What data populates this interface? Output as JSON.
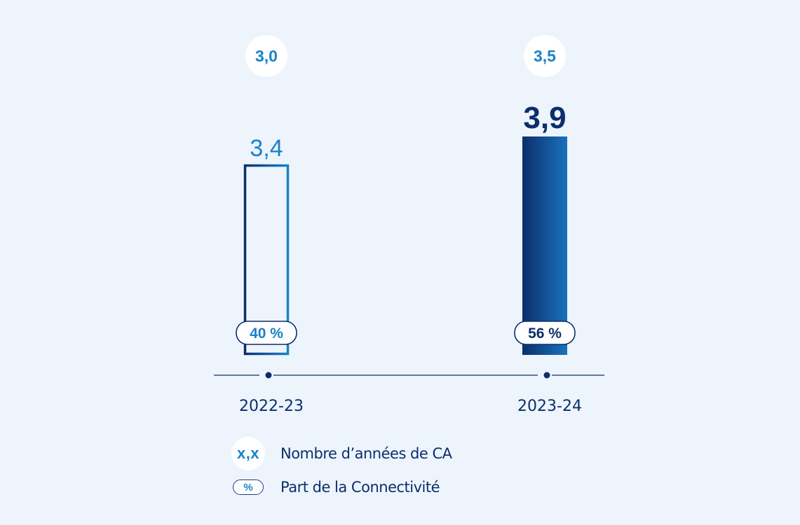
{
  "chart_data": {
    "type": "bar",
    "categories": [
      "2022-23",
      "2023-24"
    ],
    "series": [
      {
        "values": [
          3.4,
          3.9
        ],
        "value_labels": [
          "3,4",
          "3,9"
        ]
      }
    ],
    "years_of_revenue": [
      "3,0",
      "3,5"
    ],
    "connectivity_share": [
      "40 %",
      "56 %"
    ],
    "ylim": [
      0,
      3.9
    ],
    "grid": false,
    "legend_placement": "bottom",
    "colors": {
      "background": "#eef4fc",
      "dark_blue": "#0b2f6b",
      "mid_blue": "#1a82c7",
      "axis": "#0b2f6b"
    }
  },
  "legend": {
    "items": [
      {
        "symbol": "x,x",
        "label": "Nombre d’années de CA"
      },
      {
        "symbol": "%",
        "label": "Part de la Connectivité"
      }
    ]
  }
}
